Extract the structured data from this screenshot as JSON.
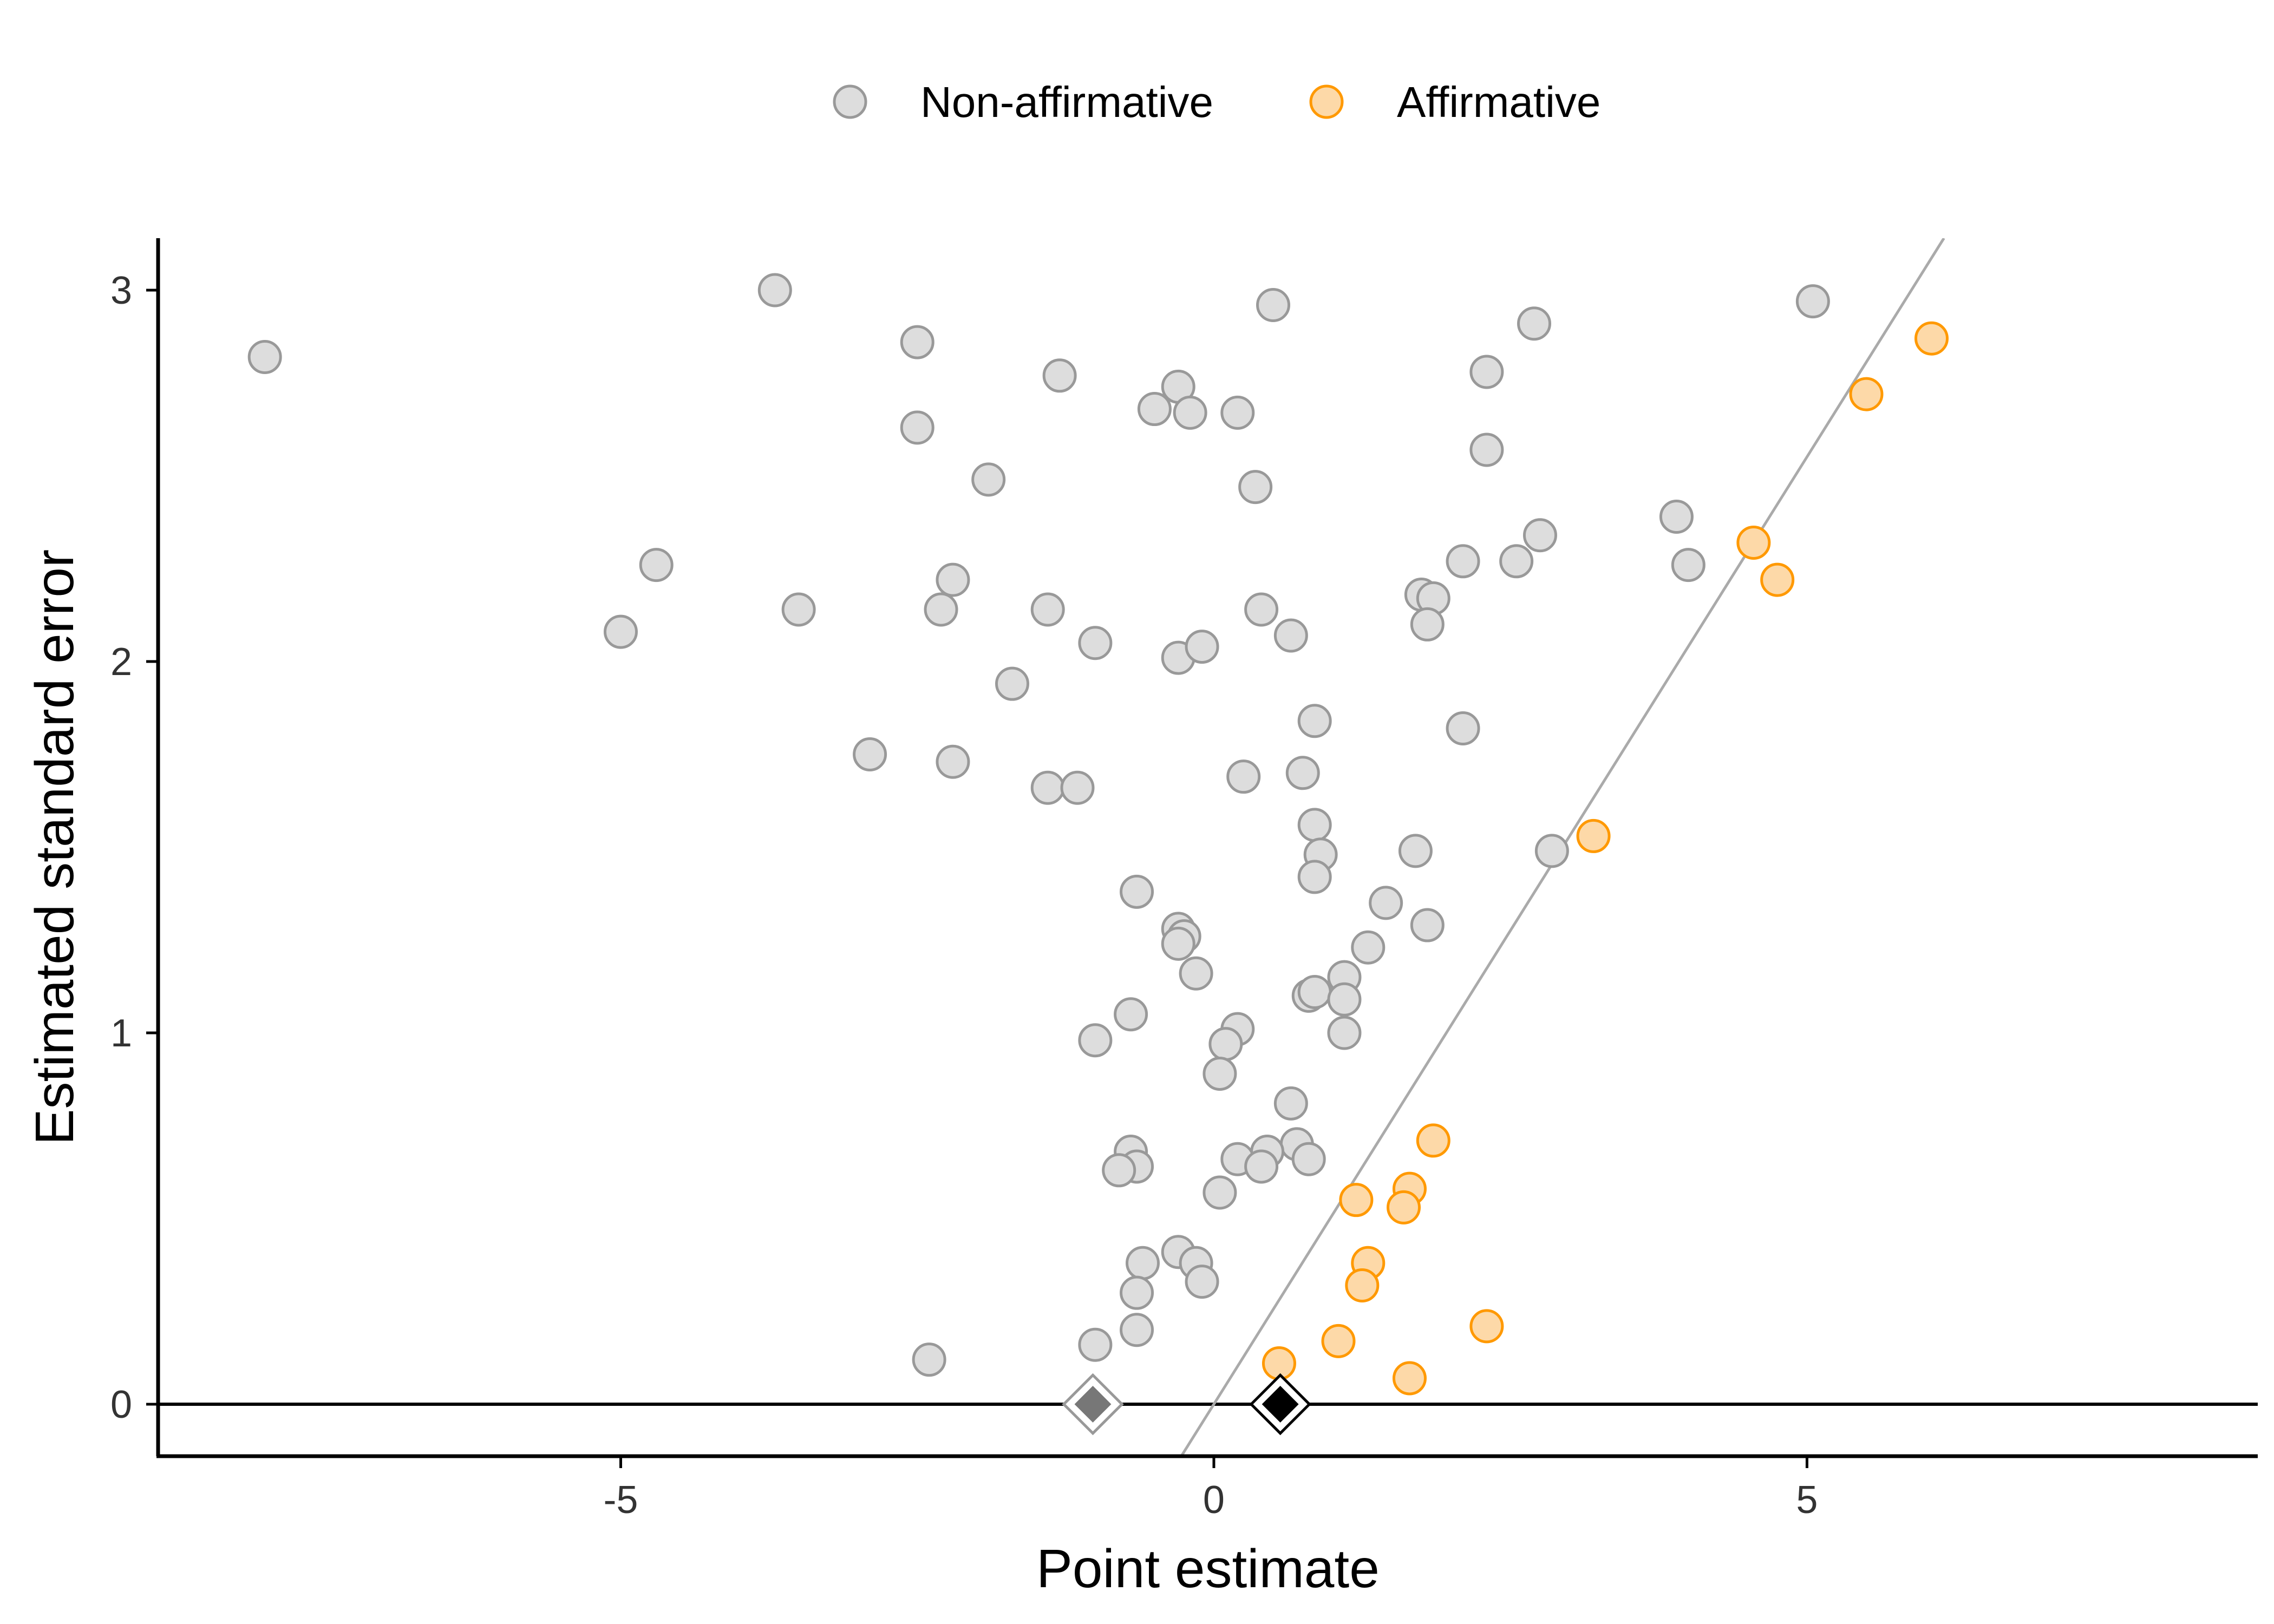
{
  "chart_data": {
    "type": "scatter",
    "title": "",
    "xlabel": "Point estimate",
    "ylabel": "Estimated standard error",
    "xlim": [
      -8.9,
      8.8
    ],
    "ylim": [
      -0.14,
      3.14
    ],
    "x_ticks": [
      -5,
      0,
      5
    ],
    "y_ticks": [
      0,
      1,
      2,
      3
    ],
    "grid": false,
    "legend_position": "top",
    "series": [
      {
        "name": "Non-affirmative",
        "color": "#999999",
        "fill": "#dddddd",
        "points": [
          [
            -8.0,
            2.82
          ],
          [
            -3.7,
            3.0
          ],
          [
            -2.5,
            2.86
          ],
          [
            -2.5,
            2.63
          ],
          [
            -1.3,
            2.77
          ],
          [
            0.5,
            2.96
          ],
          [
            -0.3,
            2.74
          ],
          [
            -0.5,
            2.68
          ],
          [
            -0.2,
            2.67
          ],
          [
            0.2,
            2.67
          ],
          [
            2.7,
            2.91
          ],
          [
            5.05,
            2.97
          ],
          [
            2.3,
            2.78
          ],
          [
            2.3,
            2.57
          ],
          [
            -1.9,
            2.49
          ],
          [
            0.35,
            2.47
          ],
          [
            -4.7,
            2.26
          ],
          [
            -5.0,
            2.08
          ],
          [
            -3.5,
            2.14
          ],
          [
            -2.2,
            2.22
          ],
          [
            -2.3,
            2.14
          ],
          [
            -1.4,
            2.14
          ],
          [
            -1.0,
            2.05
          ],
          [
            -0.3,
            2.01
          ],
          [
            -0.1,
            2.04
          ],
          [
            0.4,
            2.14
          ],
          [
            0.65,
            2.07
          ],
          [
            1.75,
            2.18
          ],
          [
            1.85,
            2.17
          ],
          [
            1.8,
            2.1
          ],
          [
            2.1,
            2.27
          ],
          [
            2.55,
            2.27
          ],
          [
            2.75,
            2.34
          ],
          [
            3.9,
            2.39
          ],
          [
            4.0,
            2.26
          ],
          [
            -1.7,
            1.94
          ],
          [
            -2.9,
            1.75
          ],
          [
            -2.2,
            1.73
          ],
          [
            -1.4,
            1.66
          ],
          [
            -1.15,
            1.66
          ],
          [
            0.85,
            1.84
          ],
          [
            0.25,
            1.69
          ],
          [
            0.75,
            1.7
          ],
          [
            2.1,
            1.82
          ],
          [
            0.85,
            1.56
          ],
          [
            0.9,
            1.48
          ],
          [
            0.85,
            1.42
          ],
          [
            1.7,
            1.49
          ],
          [
            2.85,
            1.49
          ],
          [
            1.45,
            1.35
          ],
          [
            1.8,
            1.29
          ],
          [
            1.3,
            1.23
          ],
          [
            -0.65,
            1.38
          ],
          [
            -0.3,
            1.28
          ],
          [
            -0.25,
            1.26
          ],
          [
            -0.3,
            1.24
          ],
          [
            -0.15,
            1.16
          ],
          [
            1.1,
            1.15
          ],
          [
            0.8,
            1.1
          ],
          [
            0.85,
            1.11
          ],
          [
            1.1,
            1.09
          ],
          [
            1.1,
            1.0
          ],
          [
            -0.7,
            1.05
          ],
          [
            -1.0,
            0.98
          ],
          [
            0.2,
            1.01
          ],
          [
            0.1,
            0.97
          ],
          [
            0.05,
            0.89
          ],
          [
            0.65,
            0.81
          ],
          [
            0.7,
            0.7
          ],
          [
            0.8,
            0.66
          ],
          [
            -0.7,
            0.68
          ],
          [
            -0.65,
            0.64
          ],
          [
            -0.8,
            0.63
          ],
          [
            0.45,
            0.68
          ],
          [
            0.2,
            0.66
          ],
          [
            0.4,
            0.64
          ],
          [
            0.05,
            0.57
          ],
          [
            -0.6,
            0.38
          ],
          [
            -0.65,
            0.3
          ],
          [
            -0.3,
            0.41
          ],
          [
            -0.15,
            0.38
          ],
          [
            -0.1,
            0.33
          ],
          [
            -0.65,
            0.2
          ],
          [
            -1.0,
            0.16
          ],
          [
            -2.4,
            0.12
          ]
        ]
      },
      {
        "name": "Affirmative",
        "color": "#ff9900",
        "fill": "#fdd9a8",
        "points": [
          [
            6.05,
            2.87
          ],
          [
            5.5,
            2.72
          ],
          [
            4.55,
            2.32
          ],
          [
            4.75,
            2.22
          ],
          [
            3.2,
            1.53
          ],
          [
            1.85,
            0.71
          ],
          [
            1.65,
            0.58
          ],
          [
            1.6,
            0.53
          ],
          [
            1.2,
            0.55
          ],
          [
            1.3,
            0.38
          ],
          [
            1.25,
            0.32
          ],
          [
            2.3,
            0.21
          ],
          [
            1.05,
            0.17
          ],
          [
            0.55,
            0.11
          ],
          [
            1.65,
            0.07
          ]
        ]
      }
    ],
    "pooled_estimates": [
      {
        "x": -1.02,
        "y": 0,
        "color": "#999999",
        "fill": "#777777"
      },
      {
        "x": 0.56,
        "y": 0,
        "color": "#000000",
        "fill": "#000000"
      }
    ],
    "significance_line": {
      "slope_per_se": 1.96,
      "color": "#aaaaaa"
    },
    "zero_line": {
      "y": 0,
      "color": "#000000"
    }
  }
}
